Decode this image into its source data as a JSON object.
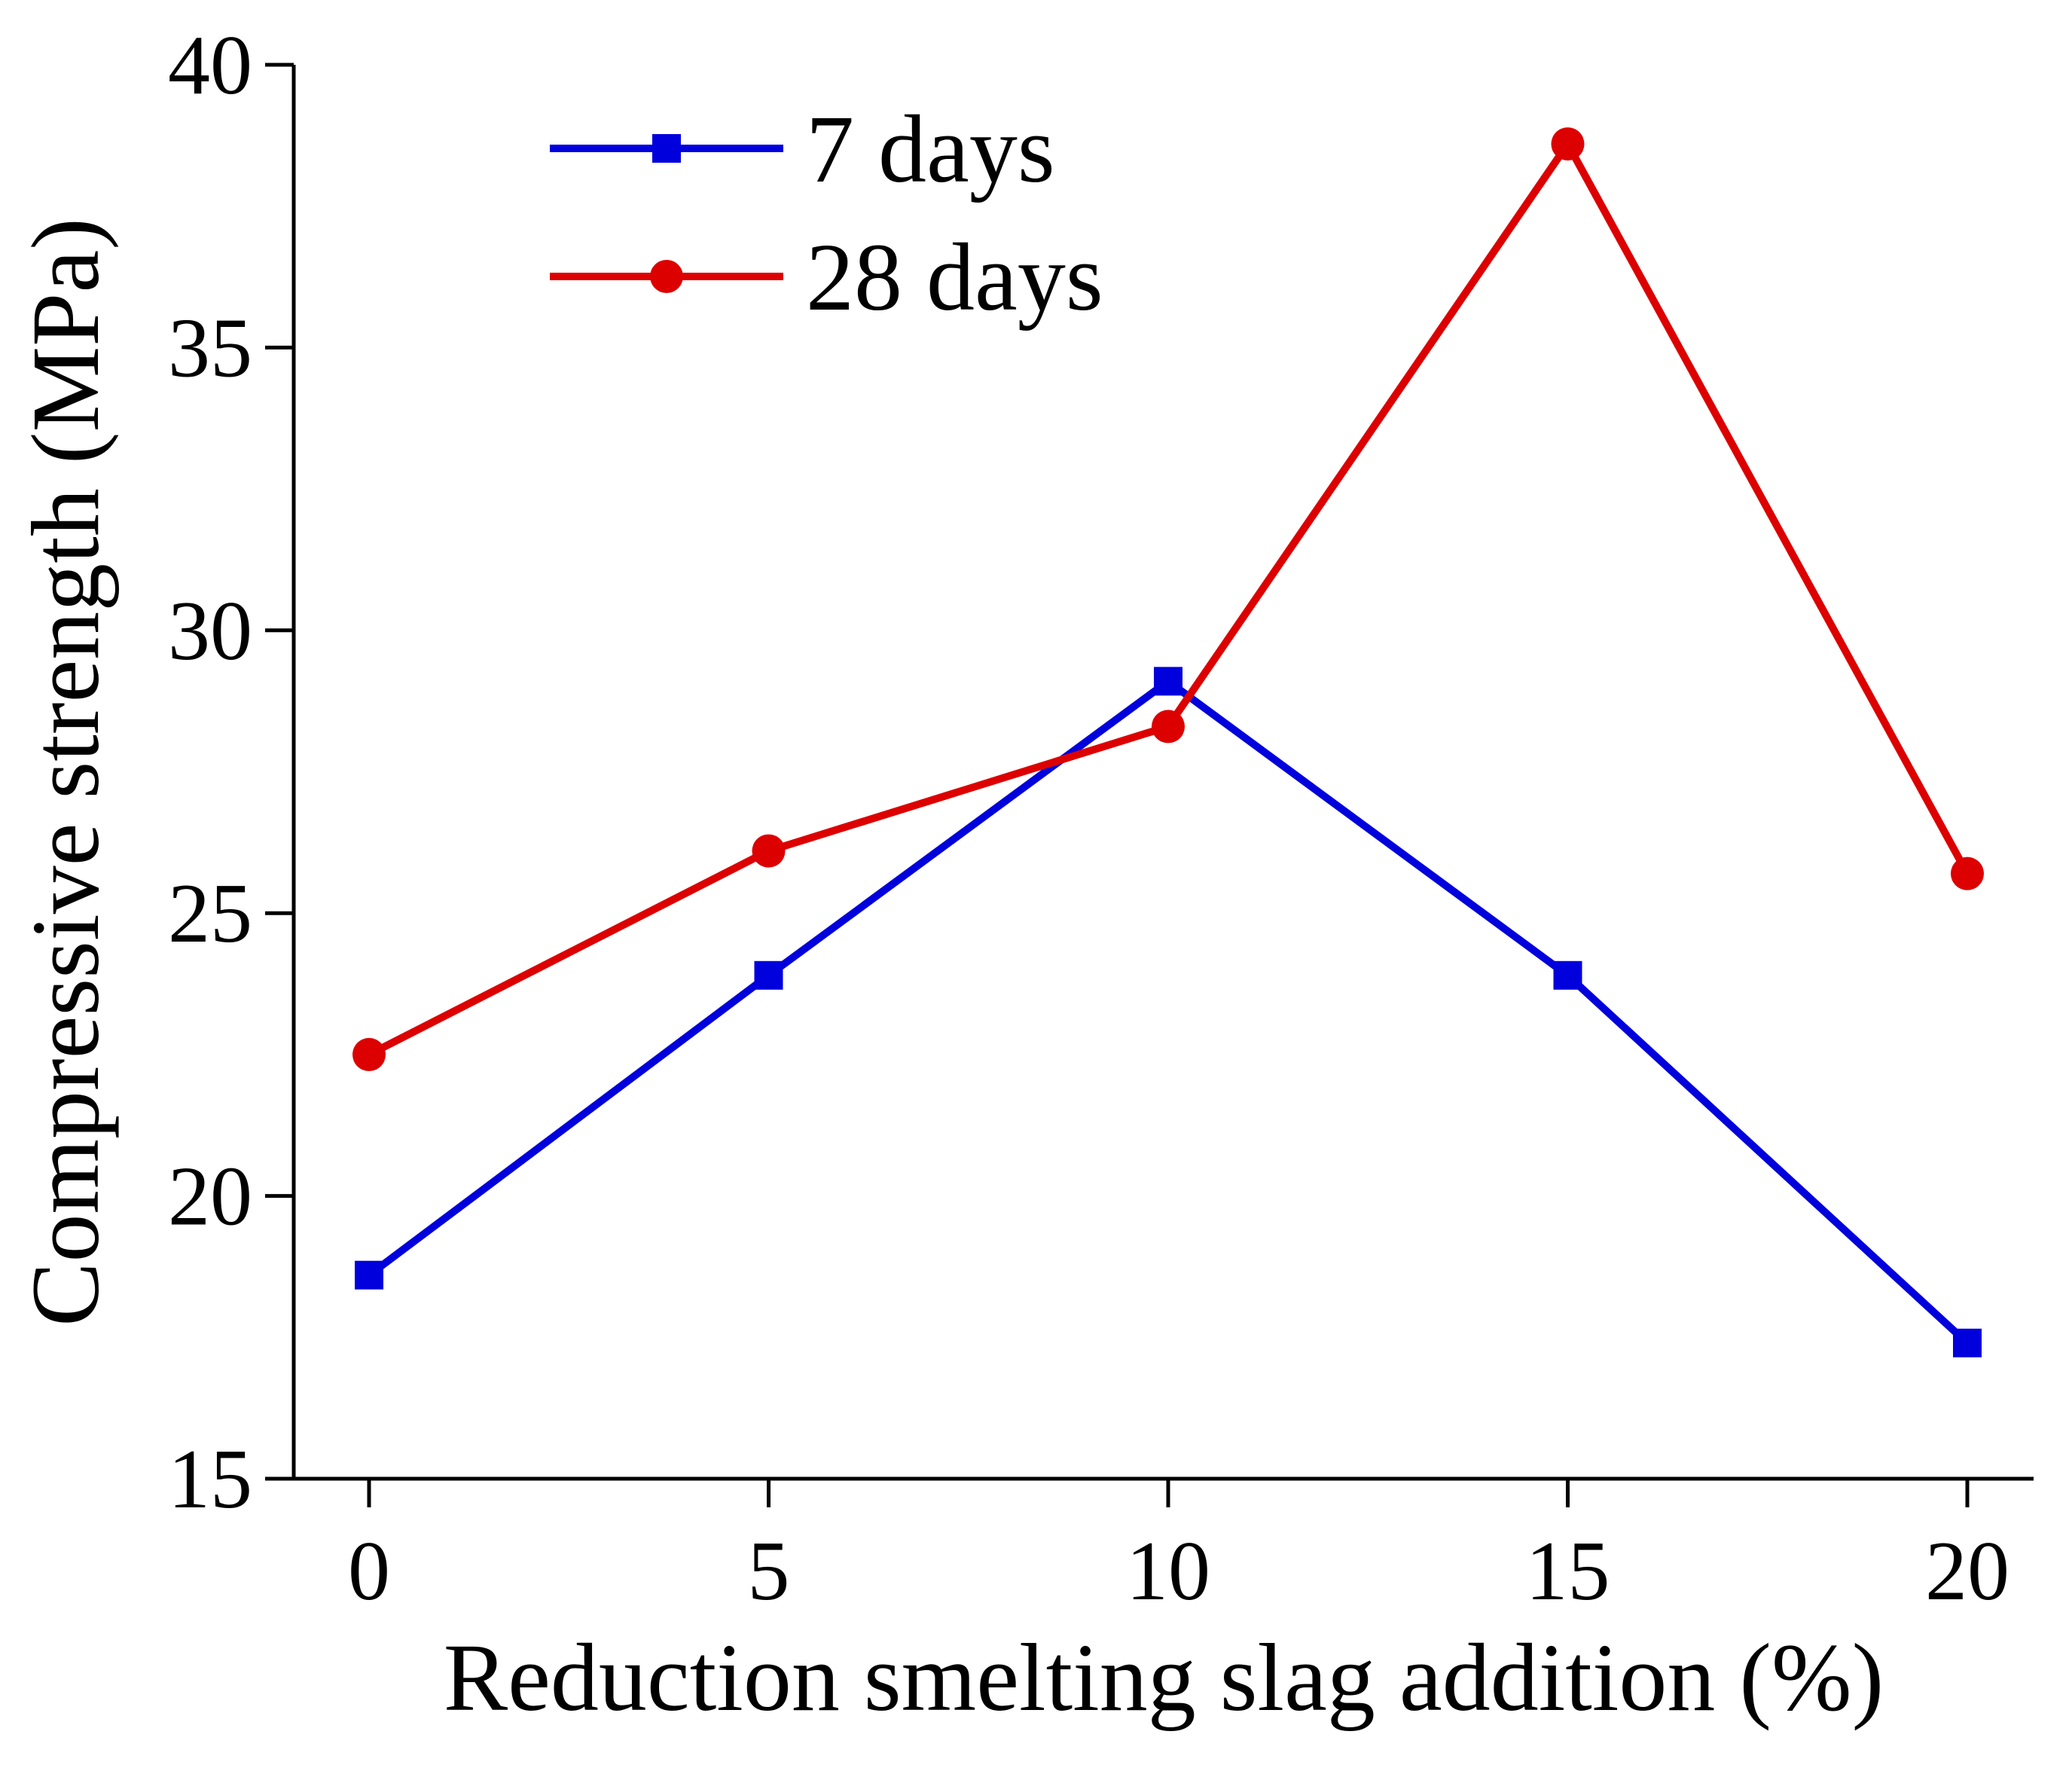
{
  "chart_data": {
    "type": "line",
    "title": "",
    "xlabel": "Reduction smelting slag addition (%)",
    "ylabel": "Compressive strength (MPa)",
    "x": [
      0,
      5,
      10,
      15,
      20
    ],
    "xlim": [
      -1,
      21
    ],
    "ylim": [
      15,
      40
    ],
    "xticks": [
      0,
      5,
      10,
      15,
      20
    ],
    "yticks": [
      15,
      20,
      25,
      30,
      35,
      40
    ],
    "grid": false,
    "legend_position": "top-left",
    "series": [
      {
        "name": "7 days",
        "marker": "square",
        "color": "#0000dd",
        "values": [
          18.6,
          23.9,
          29.1,
          23.9,
          17.4
        ]
      },
      {
        "name": "28 days",
        "marker": "circle",
        "color": "#dd0000",
        "values": [
          22.5,
          26.1,
          28.3,
          38.6,
          25.7
        ]
      }
    ]
  }
}
